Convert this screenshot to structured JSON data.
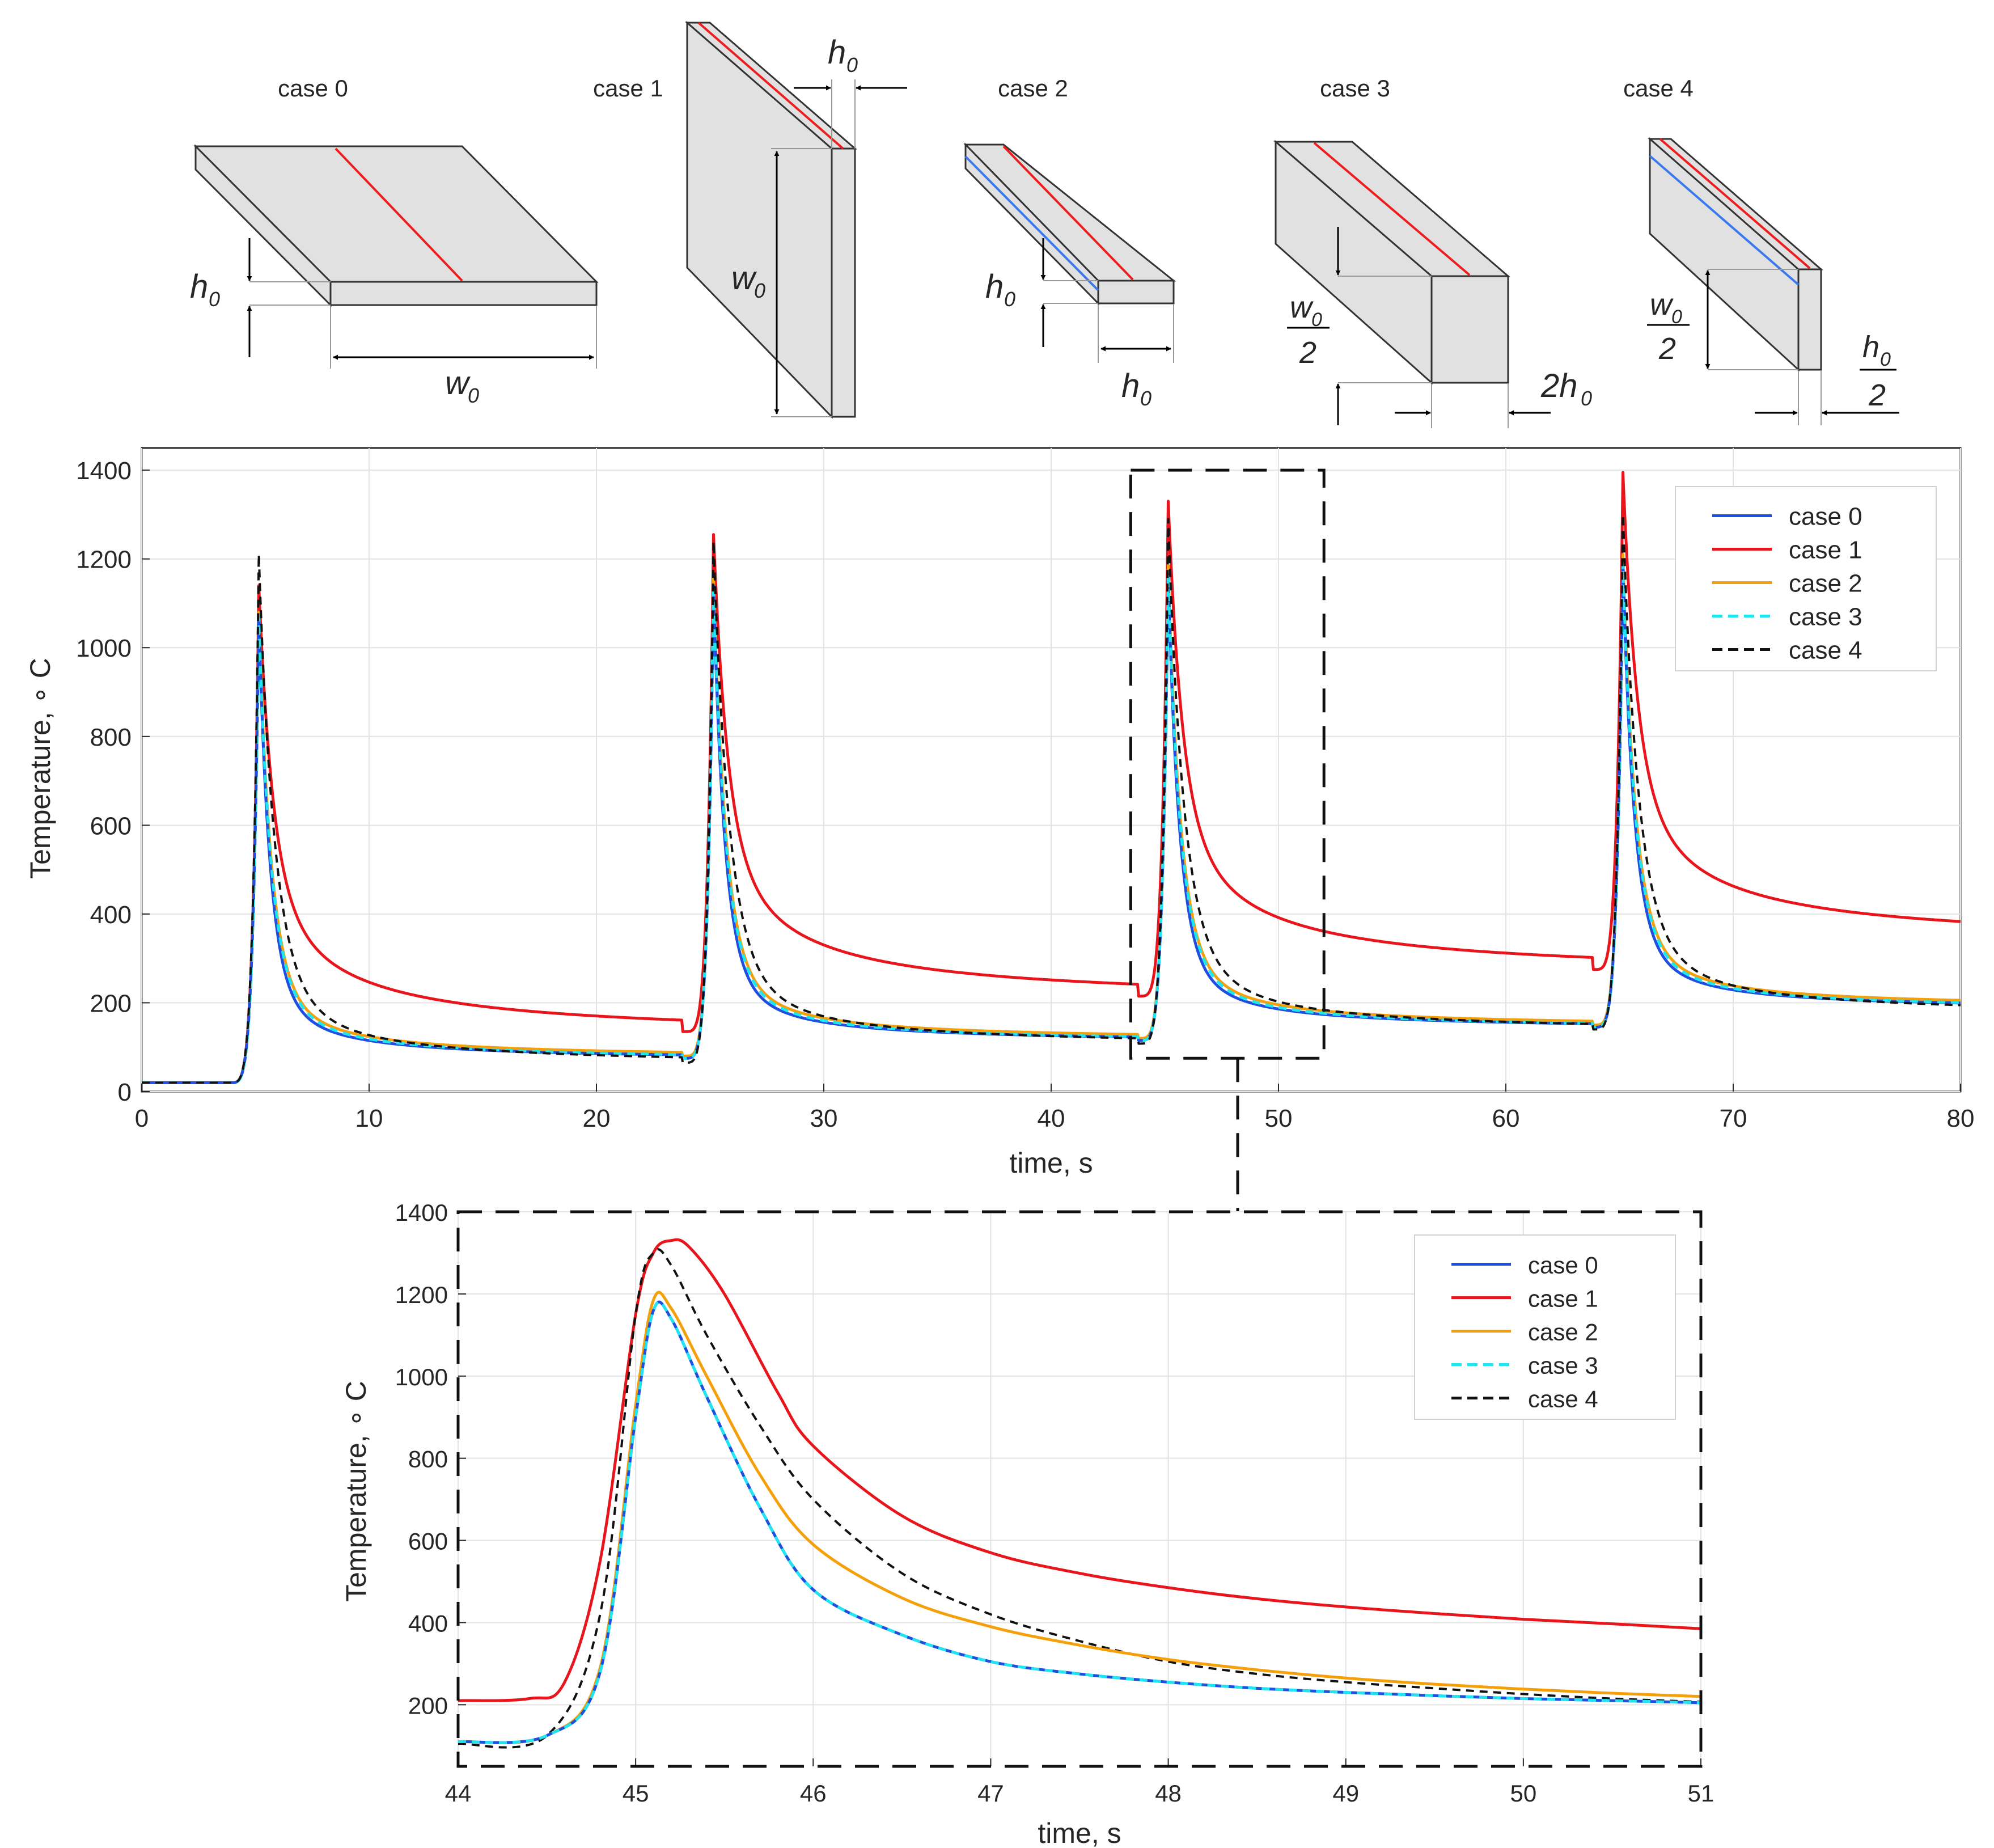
{
  "diagrams": {
    "cases": [
      {
        "label": "case 0"
      },
      {
        "label": "case 1"
      },
      {
        "label": "case 2"
      },
      {
        "label": "case 3"
      },
      {
        "label": "case 4"
      }
    ],
    "dims": {
      "h0": "h",
      "w0": "w",
      "sub": "0",
      "two": "2",
      "two_h": "2h"
    }
  },
  "chart_data": [
    {
      "type": "line",
      "id": "main",
      "title": "",
      "xlabel": "time, s",
      "ylabel": "Temperature, ∘ C",
      "xlim": [
        0,
        80
      ],
      "ylim": [
        0,
        1450
      ],
      "xticks": [
        0,
        10,
        20,
        30,
        40,
        50,
        60,
        70,
        80
      ],
      "yticks": [
        0,
        200,
        400,
        600,
        800,
        1000,
        1200,
        1400
      ],
      "grid": true,
      "legend": "top-right",
      "pulse_times": [
        5,
        25,
        45,
        65
      ],
      "series": [
        {
          "name": "case 0",
          "color": "#1f4fe0",
          "style": "solid",
          "peaks": [
            1070,
            1140,
            1165,
            1190
          ],
          "troughs": [
            20,
            75,
            115,
            145,
            190
          ]
        },
        {
          "name": "case 1",
          "color": "#e8161c",
          "style": "solid",
          "peaks": [
            1140,
            1255,
            1330,
            1395
          ],
          "troughs": [
            20,
            135,
            215,
            275,
            350
          ]
        },
        {
          "name": "case 2",
          "color": "#f5a00a",
          "style": "solid",
          "peaks": [
            1080,
            1160,
            1185,
            1210
          ],
          "troughs": [
            20,
            80,
            120,
            150,
            195
          ]
        },
        {
          "name": "case 3",
          "color": "#1ee5f0",
          "style": "dashed",
          "peaks": [
            1070,
            1140,
            1165,
            1190
          ],
          "troughs": [
            20,
            75,
            115,
            145,
            190
          ]
        },
        {
          "name": "case 4",
          "color": "#111111",
          "style": "dashed",
          "peaks": [
            1210,
            1240,
            1290,
            1300
          ],
          "troughs": [
            20,
            65,
            108,
            140,
            180
          ]
        }
      ],
      "zoom_box": {
        "x": [
          43.5,
          52
        ],
        "y": [
          75,
          1400
        ]
      }
    },
    {
      "type": "line",
      "id": "zoom",
      "title": "",
      "xlabel": "time, s",
      "ylabel": "Temperature, ∘ C",
      "xlim": [
        44,
        51
      ],
      "ylim": [
        50,
        1400
      ],
      "xticks": [
        44,
        45,
        46,
        47,
        48,
        49,
        50,
        51
      ],
      "yticks": [
        200,
        400,
        600,
        800,
        1000,
        1200,
        1400
      ],
      "grid": true,
      "legend": "top-right",
      "series": [
        {
          "name": "case 0",
          "color": "#1f4fe0",
          "style": "solid",
          "x": [
            44.0,
            44.5,
            44.8,
            45.0,
            45.1,
            45.2,
            45.4,
            45.7,
            46.0,
            46.5,
            47.0,
            47.5,
            48.0,
            48.5,
            49.0,
            49.5,
            50.0,
            50.5,
            51.0
          ],
          "y": [
            110,
            125,
            280,
            900,
            1160,
            1140,
            950,
            680,
            480,
            370,
            305,
            275,
            255,
            240,
            230,
            222,
            215,
            210,
            205
          ]
        },
        {
          "name": "case 1",
          "color": "#e8161c",
          "style": "solid",
          "x": [
            44.0,
            44.4,
            44.6,
            44.8,
            45.0,
            45.1,
            45.2,
            45.3,
            45.5,
            45.8,
            46.0,
            46.5,
            47.0,
            47.5,
            48.0,
            48.5,
            49.0,
            49.5,
            50.0,
            50.5,
            51.0
          ],
          "y": [
            210,
            215,
            255,
            550,
            1150,
            1300,
            1330,
            1315,
            1200,
            960,
            830,
            660,
            570,
            520,
            485,
            458,
            438,
            422,
            408,
            397,
            385
          ]
        },
        {
          "name": "case 2",
          "color": "#f5a00a",
          "style": "solid",
          "x": [
            44.0,
            44.5,
            44.8,
            45.0,
            45.1,
            45.2,
            45.4,
            45.7,
            46.0,
            46.5,
            47.0,
            47.5,
            48.0,
            48.5,
            49.0,
            49.5,
            50.0,
            50.5,
            51.0
          ],
          "y": [
            110,
            125,
            290,
            930,
            1185,
            1165,
            1000,
            760,
            590,
            460,
            390,
            345,
            310,
            285,
            265,
            250,
            238,
            228,
            220
          ]
        },
        {
          "name": "case 3",
          "color": "#1ee5f0",
          "style": "dashed",
          "x": [
            44.0,
            44.5,
            44.8,
            45.0,
            45.1,
            45.2,
            45.4,
            45.7,
            46.0,
            46.5,
            47.0,
            47.5,
            48.0,
            48.5,
            49.0,
            49.5,
            50.0,
            50.5,
            51.0
          ],
          "y": [
            110,
            125,
            280,
            900,
            1160,
            1140,
            950,
            680,
            480,
            370,
            305,
            275,
            255,
            240,
            230,
            222,
            215,
            210,
            205
          ]
        },
        {
          "name": "case 4",
          "color": "#111111",
          "style": "dashed",
          "x": [
            44.0,
            44.5,
            44.8,
            45.0,
            45.1,
            45.2,
            45.4,
            45.7,
            46.0,
            46.5,
            47.0,
            47.5,
            48.0,
            48.5,
            49.0,
            49.5,
            50.0,
            50.5,
            51.0
          ],
          "y": [
            105,
            125,
            420,
            1150,
            1300,
            1270,
            1100,
            880,
            700,
            520,
            420,
            355,
            305,
            275,
            255,
            240,
            226,
            215,
            207
          ]
        }
      ]
    }
  ]
}
